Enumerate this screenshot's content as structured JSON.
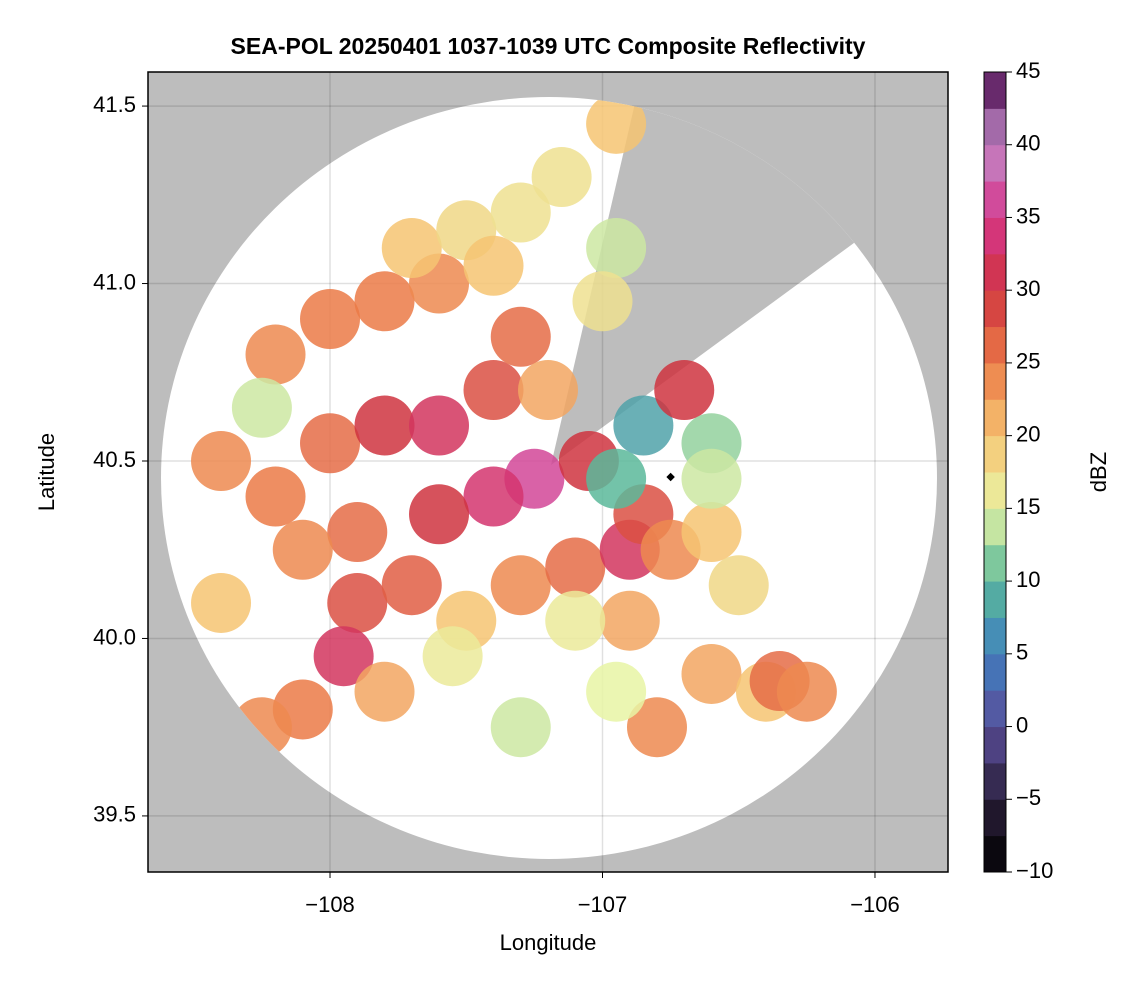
{
  "chart_data": {
    "type": "scatter",
    "title": "SEA-POL 20250401 1037-1039 UTC Composite Reflectivity",
    "xlabel": "Longitude",
    "ylabel": "Latitude",
    "xlim": [
      -108.668,
      -105.732
    ],
    "ylim": [
      39.342,
      41.596
    ],
    "xticks": [
      {
        "value": -108,
        "label": "−108"
      },
      {
        "value": -107,
        "label": "−107"
      },
      {
        "value": -106,
        "label": "−106"
      }
    ],
    "yticks": [
      {
        "value": 39.5,
        "label": "39.5"
      },
      {
        "value": 40.0,
        "label": "40.0"
      },
      {
        "value": 40.5,
        "label": "40.5"
      },
      {
        "value": 41.0,
        "label": "41.0"
      },
      {
        "value": 41.5,
        "label": "41.5"
      }
    ],
    "grid": true,
    "x": [
      -108.2,
      -108.0,
      -107.8,
      -107.6,
      -107.7,
      -107.5,
      -107.3,
      -107.4,
      -108.25,
      -108.4,
      -108.2,
      -108.0,
      -107.8,
      -107.6,
      -107.4,
      -107.3,
      -107.2,
      -107.25,
      -107.05,
      -107.4,
      -107.6,
      -107.9,
      -108.1,
      -107.9,
      -107.7,
      -107.95,
      -108.1,
      -108.25,
      -107.8,
      -107.5,
      -107.3,
      -107.1,
      -106.9,
      -106.85,
      -106.75,
      -106.6,
      -106.5,
      -106.9,
      -107.1,
      -106.95,
      -106.85,
      -106.7,
      -106.6,
      -106.6,
      -107.15,
      -106.95,
      -106.95,
      -107.0,
      -106.8,
      -106.6,
      -106.4,
      -106.35,
      -106.25,
      -107.3,
      -106.95,
      -107.55,
      -108.4
    ],
    "y": [
      40.8,
      40.9,
      40.95,
      41.0,
      41.1,
      41.15,
      41.2,
      41.05,
      40.65,
      40.5,
      40.4,
      40.55,
      40.6,
      40.6,
      40.7,
      40.85,
      40.7,
      40.45,
      40.5,
      40.4,
      40.35,
      40.3,
      40.25,
      40.1,
      40.15,
      39.95,
      39.8,
      39.75,
      39.85,
      40.05,
      40.15,
      40.2,
      40.25,
      40.35,
      40.25,
      40.3,
      40.15,
      40.05,
      40.05,
      40.45,
      40.6,
      40.7,
      40.55,
      40.45,
      41.3,
      41.45,
      41.1,
      40.95,
      39.75,
      39.9,
      39.85,
      39.88,
      39.85,
      39.75,
      39.85,
      39.95,
      40.1
    ],
    "values": [
      24,
      25,
      25,
      24,
      20,
      18,
      17,
      20,
      14,
      24,
      25,
      26,
      30,
      32,
      28,
      26,
      22,
      36,
      30,
      33,
      30,
      26,
      24,
      28,
      27,
      32,
      25,
      24,
      22,
      20,
      24,
      26,
      32,
      28,
      24,
      20,
      18,
      22,
      16,
      10,
      8,
      30,
      12,
      14,
      17,
      20,
      14,
      17,
      24,
      22,
      20,
      26,
      24,
      14,
      15,
      16,
      20
    ],
    "site": {
      "x": -106.75,
      "y": 40.455
    },
    "colorbar": {
      "label": "dBZ",
      "lim": [
        -10,
        45
      ],
      "ticks": [
        {
          "value": -10,
          "label": "−10"
        },
        {
          "value": -5,
          "label": "−5"
        },
        0,
        5,
        10,
        15,
        20,
        25,
        30,
        35,
        40,
        45
      ],
      "colors": [
        "#000000",
        "#2a1f3a",
        "#5a4e9a",
        "#3f7fbf",
        "#5bb99a",
        "#e8f4a4",
        "#f6c472",
        "#eb7a47",
        "#cf3440",
        "#d6368c",
        "#c08ac8",
        "#4a0a4d"
      ]
    }
  }
}
